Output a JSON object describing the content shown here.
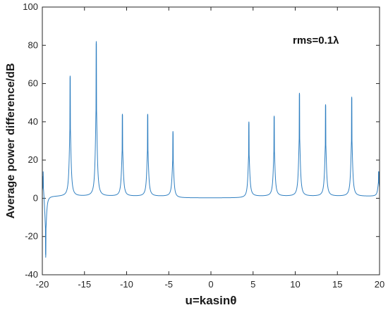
{
  "chart_data": {
    "type": "line",
    "title": "",
    "xlabel": "u=kasinθ",
    "ylabel": "Average power difference/dB",
    "annotation": "rms=0.1λ",
    "xlim": [
      -20,
      20
    ],
    "ylim": [
      -40,
      100
    ],
    "xticks": [
      -20,
      -15,
      -10,
      -5,
      0,
      5,
      10,
      15,
      20
    ],
    "yticks": [
      -40,
      -20,
      0,
      20,
      40,
      60,
      80,
      100
    ],
    "grid": false,
    "legend": "none",
    "series": [
      {
        "color": "#2f7fc1",
        "baseline": 1.0,
        "peaks": [
          {
            "u": -19.9,
            "value": 14
          },
          {
            "u": -19.6,
            "value": -31
          },
          {
            "u": -16.7,
            "value": 64
          },
          {
            "u": -13.6,
            "value": 82
          },
          {
            "u": -10.5,
            "value": 44
          },
          {
            "u": -7.5,
            "value": 44
          },
          {
            "u": -4.5,
            "value": 35
          },
          {
            "u": 4.5,
            "value": 40
          },
          {
            "u": 7.5,
            "value": 43
          },
          {
            "u": 10.5,
            "value": 55
          },
          {
            "u": 13.6,
            "value": 49
          },
          {
            "u": 16.7,
            "value": 53
          },
          {
            "u": 19.9,
            "value": 14
          }
        ]
      }
    ]
  }
}
